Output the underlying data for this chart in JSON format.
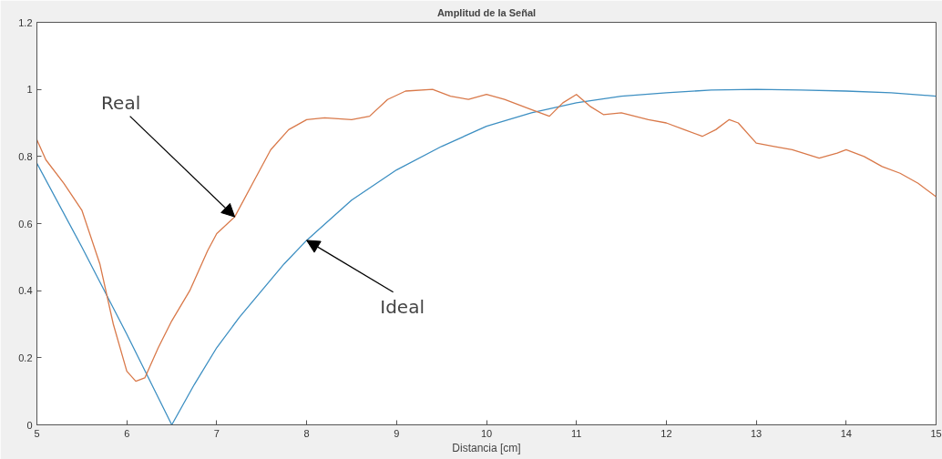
{
  "chart_data": {
    "type": "line",
    "title": "Amplitud de la Señal",
    "xlabel": "Distancia [cm]",
    "xlim": [
      5,
      15
    ],
    "ylim": [
      0,
      1.2
    ],
    "xticks": [
      5,
      6,
      7,
      8,
      9,
      10,
      11,
      12,
      13,
      14,
      15
    ],
    "yticks": [
      0,
      0.2,
      0.4,
      0.6,
      0.8,
      1,
      1.2
    ],
    "line_style": "solid",
    "series": [
      {
        "color": "#3d8fc2",
        "x": [
          5,
          5.5,
          6,
          6.5,
          6.75,
          7,
          7.25,
          7.5,
          7.75,
          8,
          8.5,
          9,
          9.5,
          10,
          10.5,
          11,
          11.5,
          12,
          12.5,
          13,
          13.5,
          14,
          14.5,
          15
        ],
        "values": [
          0.78,
          0.53,
          0.27,
          0,
          0.12,
          0.23,
          0.32,
          0.4,
          0.48,
          0.55,
          0.67,
          0.76,
          0.83,
          0.89,
          0.93,
          0.96,
          0.98,
          0.99,
          0.998,
          1,
          0.998,
          0.995,
          0.99,
          0.98
        ]
      },
      {
        "color": "#d9794a",
        "x": [
          5,
          5.1,
          5.3,
          5.5,
          5.7,
          5.85,
          6,
          6.1,
          6.2,
          6.35,
          6.5,
          6.7,
          6.9,
          7,
          7.2,
          7.4,
          7.6,
          7.8,
          8,
          8.2,
          8.5,
          8.7,
          8.9,
          9.1,
          9.4,
          9.6,
          9.8,
          10,
          10.2,
          10.5,
          10.7,
          10.85,
          11,
          11.15,
          11.3,
          11.5,
          11.8,
          12,
          12.2,
          12.4,
          12.55,
          12.7,
          12.8,
          13,
          13.2,
          13.4,
          13.7,
          13.9,
          14,
          14.2,
          14.4,
          14.6,
          14.8,
          15
        ],
        "values": [
          0.85,
          0.79,
          0.72,
          0.64,
          0.48,
          0.3,
          0.16,
          0.13,
          0.14,
          0.23,
          0.31,
          0.4,
          0.52,
          0.57,
          0.62,
          0.72,
          0.82,
          0.88,
          0.91,
          0.915,
          0.91,
          0.92,
          0.97,
          0.995,
          1,
          0.98,
          0.97,
          0.985,
          0.97,
          0.94,
          0.92,
          0.96,
          0.985,
          0.95,
          0.925,
          0.93,
          0.91,
          0.9,
          0.88,
          0.86,
          0.88,
          0.91,
          0.9,
          0.84,
          0.83,
          0.82,
          0.795,
          0.81,
          0.82,
          0.8,
          0.77,
          0.75,
          0.72,
          0.68
        ]
      }
    ],
    "annotations": [
      {
        "text": "Real",
        "x": 7.2,
        "y": 0.62
      },
      {
        "text": "Ideal",
        "x": 8,
        "y": 0.55
      }
    ]
  }
}
